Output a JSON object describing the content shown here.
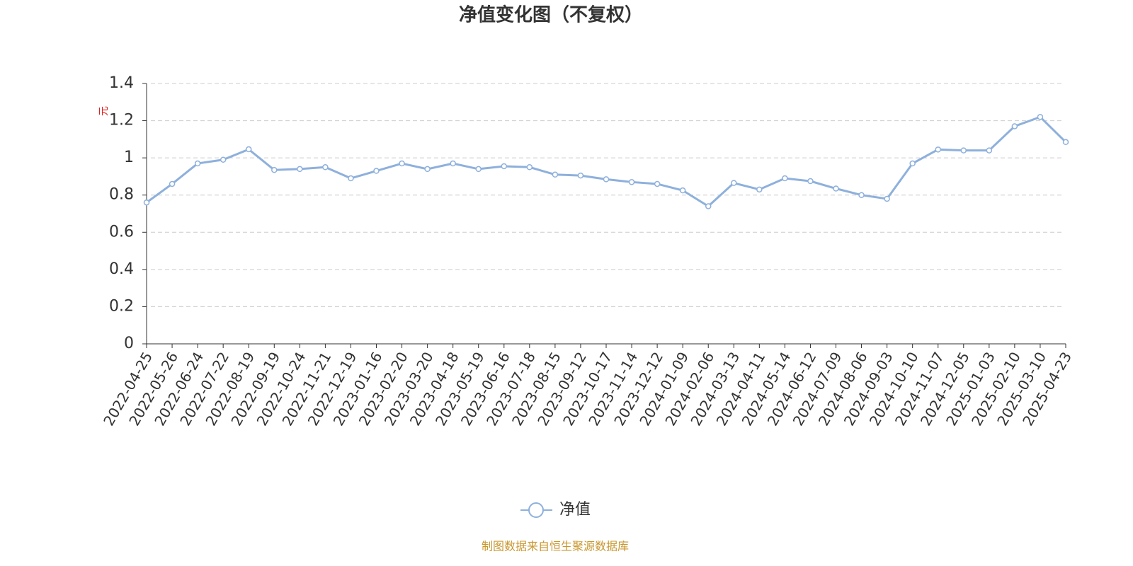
{
  "chart_data": {
    "type": "line",
    "title": "净值变化图（不复权）",
    "y_label": "元",
    "source": "制图数据来自恒生聚源数据库",
    "categories": [
      "2022-04-25",
      "2022-05-26",
      "2022-06-24",
      "2022-07-22",
      "2022-08-19",
      "2022-09-19",
      "2022-10-24",
      "2022-11-21",
      "2022-12-19",
      "2023-01-16",
      "2023-02-20",
      "2023-03-20",
      "2023-04-18",
      "2023-05-19",
      "2023-06-16",
      "2023-07-18",
      "2023-08-15",
      "2023-09-12",
      "2023-10-17",
      "2023-11-14",
      "2023-12-12",
      "2024-01-09",
      "2024-02-06",
      "2024-03-13",
      "2024-04-11",
      "2024-05-14",
      "2024-06-12",
      "2024-07-09",
      "2024-08-06",
      "2024-09-03",
      "2024-10-10",
      "2024-11-07",
      "2024-12-05",
      "2025-01-03",
      "2025-02-10",
      "2025-03-10",
      "2025-04-23"
    ],
    "series": [
      {
        "name": "净值",
        "color": "#8eb0dc",
        "values": [
          0.76,
          0.86,
          0.97,
          0.99,
          1.046,
          0.935,
          0.94,
          0.95,
          0.89,
          0.93,
          0.97,
          0.94,
          0.97,
          0.94,
          0.955,
          0.95,
          0.91,
          0.905,
          0.885,
          0.87,
          0.86,
          0.825,
          0.74,
          0.865,
          0.83,
          0.89,
          0.875,
          0.835,
          0.8,
          0.78,
          0.97,
          1.045,
          1.04,
          1.04,
          1.17,
          1.22,
          1.085
        ]
      }
    ],
    "ylim": [
      0,
      1.4
    ],
    "yticks": [
      0,
      0.2,
      0.4,
      0.6,
      0.8,
      1,
      1.2,
      1.4
    ],
    "grid": true
  }
}
